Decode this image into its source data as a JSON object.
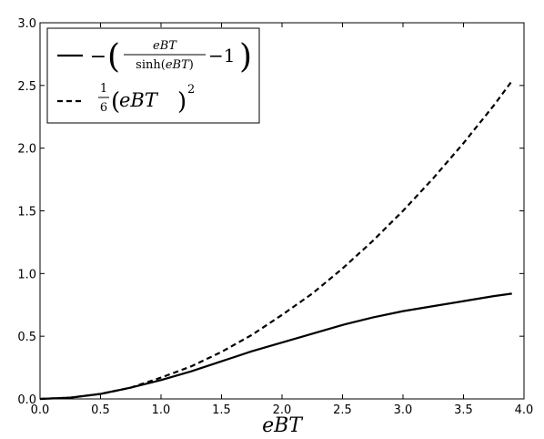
{
  "chart_data": {
    "type": "line",
    "title": "",
    "xlabel": "eBT",
    "ylabel": "",
    "xlim": [
      0.0,
      4.0
    ],
    "ylim": [
      0.0,
      3.0
    ],
    "x_ticks": [
      "0.0",
      "0.5",
      "1.0",
      "1.5",
      "2.0",
      "2.5",
      "3.0",
      "3.5",
      "4.0"
    ],
    "y_ticks": [
      "0.0",
      "0.5",
      "1.0",
      "1.5",
      "2.0",
      "2.5",
      "3.0"
    ],
    "grid": false,
    "legend_position": "top-left",
    "x": [
      0.0,
      0.25,
      0.5,
      0.75,
      1.0,
      1.25,
      1.5,
      1.75,
      2.0,
      2.25,
      2.5,
      2.75,
      3.0,
      3.25,
      3.5,
      3.75,
      3.9
    ],
    "series": [
      {
        "name": "−( eBT / sinh(eBT) − 1 )",
        "style": "solid",
        "color": "#000000",
        "values": [
          0.0,
          0.01,
          0.04,
          0.09,
          0.15,
          0.22,
          0.3,
          0.38,
          0.45,
          0.52,
          0.59,
          0.65,
          0.7,
          0.74,
          0.78,
          0.82,
          0.84
        ]
      },
      {
        "name": "(1/6)(eBT)²",
        "style": "dashed",
        "color": "#000000",
        "values": [
          0.0,
          0.01,
          0.04,
          0.09,
          0.17,
          0.26,
          0.375,
          0.51,
          0.67,
          0.84,
          1.04,
          1.26,
          1.5,
          1.76,
          2.04,
          2.34,
          2.535
        ]
      }
    ],
    "legend": {
      "entry1": {
        "minus": "−",
        "num": "eBT",
        "den_fn": "sinh",
        "den_arg": "eBT",
        "tail": "−1"
      },
      "entry2": {
        "num": "1",
        "den": "6",
        "base": "eBT",
        "exp": "2"
      }
    }
  }
}
